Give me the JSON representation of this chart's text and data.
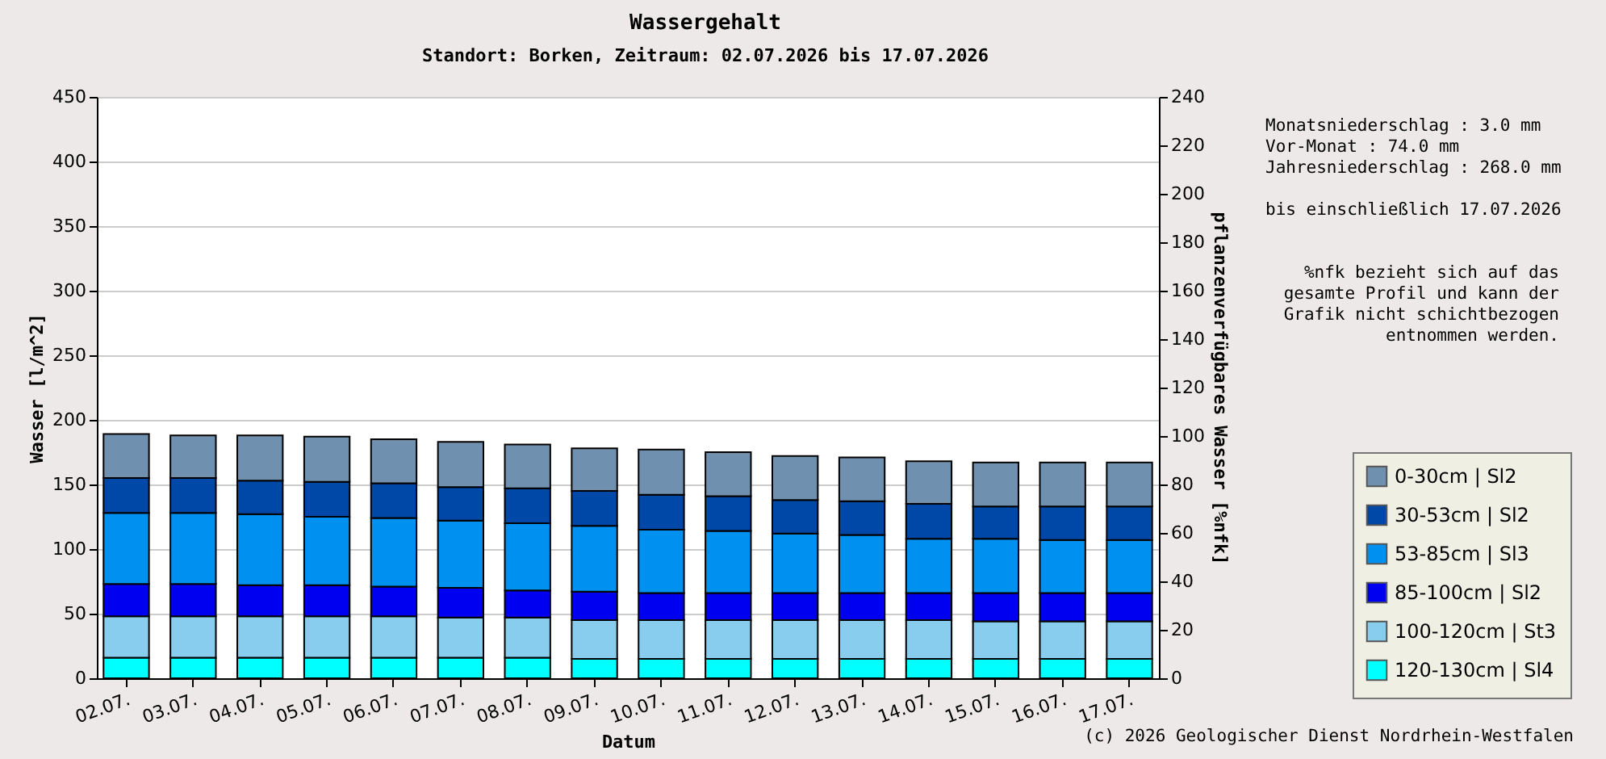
{
  "chart_data": {
    "type": "bar",
    "title": "Wassergehalt",
    "subtitle": "Standort: Borken, Zeitraum: 02.07.2026 bis 17.07.2026",
    "xlabel": "Datum",
    "ylabel": "Wasser [l/m^2]",
    "y2label": "pflanzenverfügbares Wasser [%nfk]",
    "categories": [
      "02.07.",
      "03.07.",
      "04.07.",
      "05.07.",
      "06.07.",
      "07.07.",
      "08.07.",
      "09.07.",
      "10.07.",
      "11.07.",
      "12.07.",
      "13.07.",
      "14.07.",
      "15.07.",
      "16.07.",
      "17.07."
    ],
    "stacked": true,
    "series": [
      {
        "name": "120-130cm | Sl4",
        "color": "#00ffff",
        "values": [
          16,
          16,
          16,
          16,
          16,
          16,
          16,
          15,
          15,
          15,
          15,
          15,
          15,
          15,
          15,
          15
        ]
      },
      {
        "name": "100-120cm | St3",
        "color": "#88ccee",
        "values": [
          32,
          32,
          32,
          32,
          32,
          31,
          31,
          30,
          30,
          30,
          30,
          30,
          30,
          29,
          29,
          29
        ]
      },
      {
        "name": "85-100cm | Sl2",
        "color": "#0000f0",
        "values": [
          25,
          25,
          24,
          24,
          23,
          23,
          21,
          22,
          21,
          21,
          21,
          21,
          21,
          22,
          22,
          22
        ]
      },
      {
        "name": "53-85cm | Sl3",
        "color": "#0090f0",
        "values": [
          55,
          55,
          55,
          53,
          53,
          52,
          52,
          51,
          49,
          48,
          46,
          45,
          42,
          42,
          41,
          41
        ]
      },
      {
        "name": "30-53cm | Sl2",
        "color": "#0048a8",
        "values": [
          27,
          27,
          26,
          27,
          27,
          26,
          27,
          27,
          27,
          27,
          26,
          26,
          27,
          25,
          26,
          26
        ]
      },
      {
        "name": "0-30cm | Sl2",
        "color": "#7090b0",
        "values": [
          34,
          33,
          35,
          35,
          34,
          35,
          34,
          33,
          35,
          34,
          34,
          34,
          33,
          34,
          34,
          34
        ]
      }
    ],
    "ylim": [
      0,
      450
    ],
    "yticks": [
      0,
      50,
      100,
      150,
      200,
      250,
      300,
      350,
      400,
      450
    ],
    "y2lim": [
      0,
      240
    ],
    "y2ticks": [
      0,
      20,
      40,
      60,
      80,
      100,
      120,
      140,
      160,
      180,
      200,
      220,
      240
    ],
    "grid": "y",
    "legend": "right",
    "annotations": [
      "Monatsniederschlag :    3.0 mm",
      "Vor-Monat          :   74.0 mm",
      "Jahresniederschlag :  268.0 mm",
      "bis einschließlich 17.07.2026",
      "%nfk bezieht sich auf das gesamte Profil und kann der Grafik nicht schichtbezogen entnommen werden.",
      "(c) 2026 Geologischer Dienst Nordrhein-Westfalen"
    ]
  }
}
